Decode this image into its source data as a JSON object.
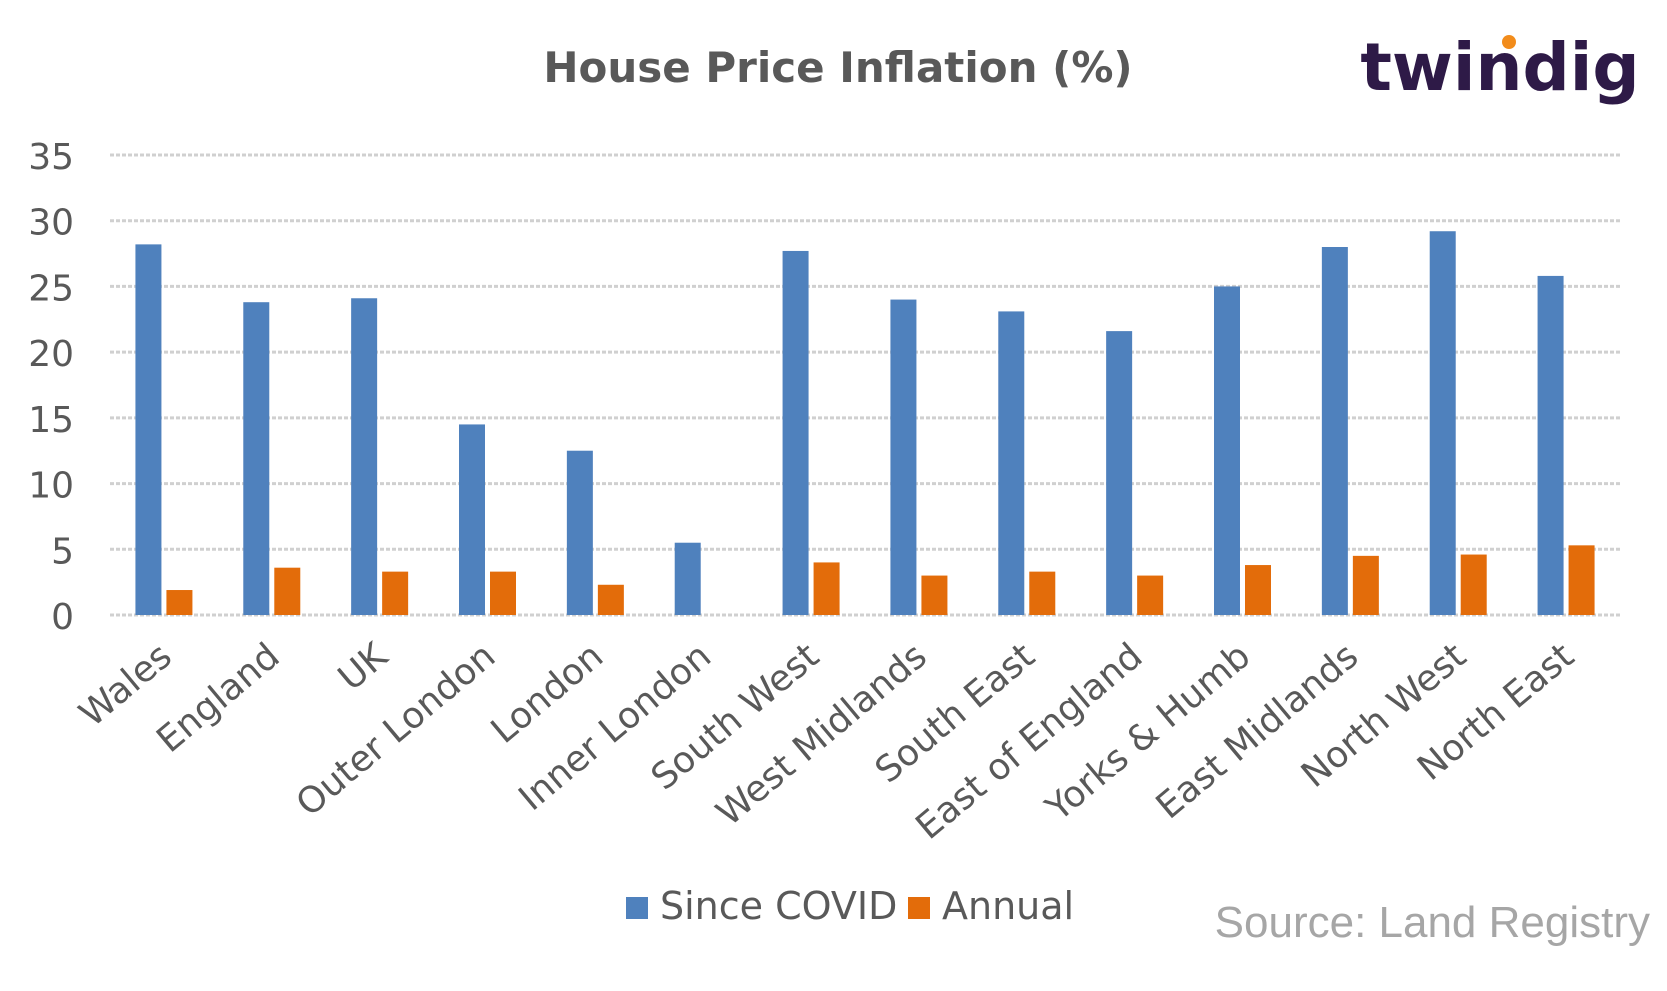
{
  "logo": {
    "text": "twindig",
    "dot_color": "#f28c1b",
    "color": "#2e1a47"
  },
  "source": "Source: Land Registry",
  "chart_data": {
    "type": "bar",
    "title": "House Price Inflation (%)",
    "xlabel": "",
    "ylabel": "",
    "ylim": [
      0,
      35
    ],
    "yticks": [
      0,
      5,
      10,
      15,
      20,
      25,
      30,
      35
    ],
    "grid": true,
    "legend_position": "bottom",
    "categories": [
      "Wales",
      "England",
      "UK",
      "Outer London",
      "London",
      "Inner London",
      "South West",
      "West Midlands",
      "South East",
      "East of England",
      "Yorks & Humb",
      "East Midlands",
      "North West",
      "North East"
    ],
    "series": [
      {
        "name": "Since COVID",
        "color": "#4f81bd",
        "values": [
          28.2,
          23.8,
          24.1,
          14.5,
          12.5,
          5.5,
          27.7,
          24.0,
          23.1,
          21.6,
          25.0,
          28.0,
          29.2,
          25.8
        ]
      },
      {
        "name": "Annual",
        "color": "#e36c0a",
        "values": [
          1.9,
          3.6,
          3.3,
          3.3,
          2.3,
          0,
          4.0,
          3.0,
          3.3,
          3.0,
          3.8,
          4.5,
          4.6,
          5.3
        ]
      }
    ]
  }
}
